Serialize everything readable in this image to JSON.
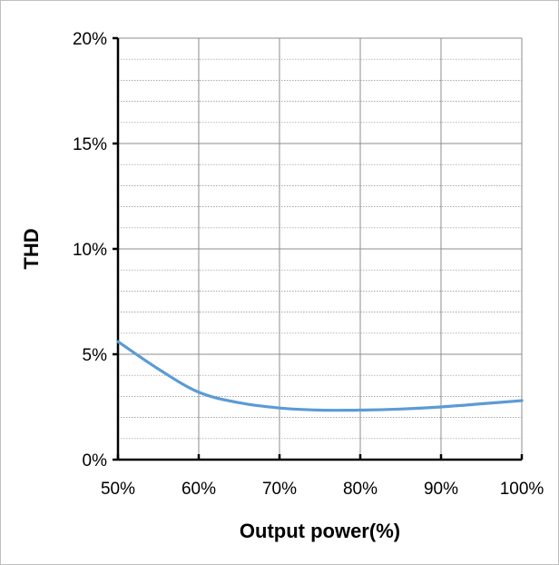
{
  "chart_data": {
    "type": "line",
    "title": "",
    "xlabel": "Output power(%)",
    "ylabel": "THD",
    "x": [
      50,
      55,
      60,
      65,
      70,
      75,
      80,
      85,
      90,
      95,
      100
    ],
    "xlim": [
      50,
      100
    ],
    "ylim": [
      0,
      20
    ],
    "x_ticks": [
      50,
      60,
      70,
      80,
      90,
      100
    ],
    "x_tick_labels": [
      "50%",
      "60%",
      "70%",
      "80%",
      "90%",
      "100%"
    ],
    "y_ticks": [
      0,
      5,
      10,
      15,
      20
    ],
    "y_tick_labels": [
      "0%",
      "5%",
      "10%",
      "15%",
      "20%"
    ],
    "series": [
      {
        "values": [
          5.6,
          4.3,
          3.2,
          2.7,
          2.45,
          2.35,
          2.35,
          2.4,
          2.5,
          2.65,
          2.8
        ],
        "color": "#5b9bd5"
      }
    ],
    "grid": true,
    "minor_grid": true,
    "legend": "none"
  }
}
